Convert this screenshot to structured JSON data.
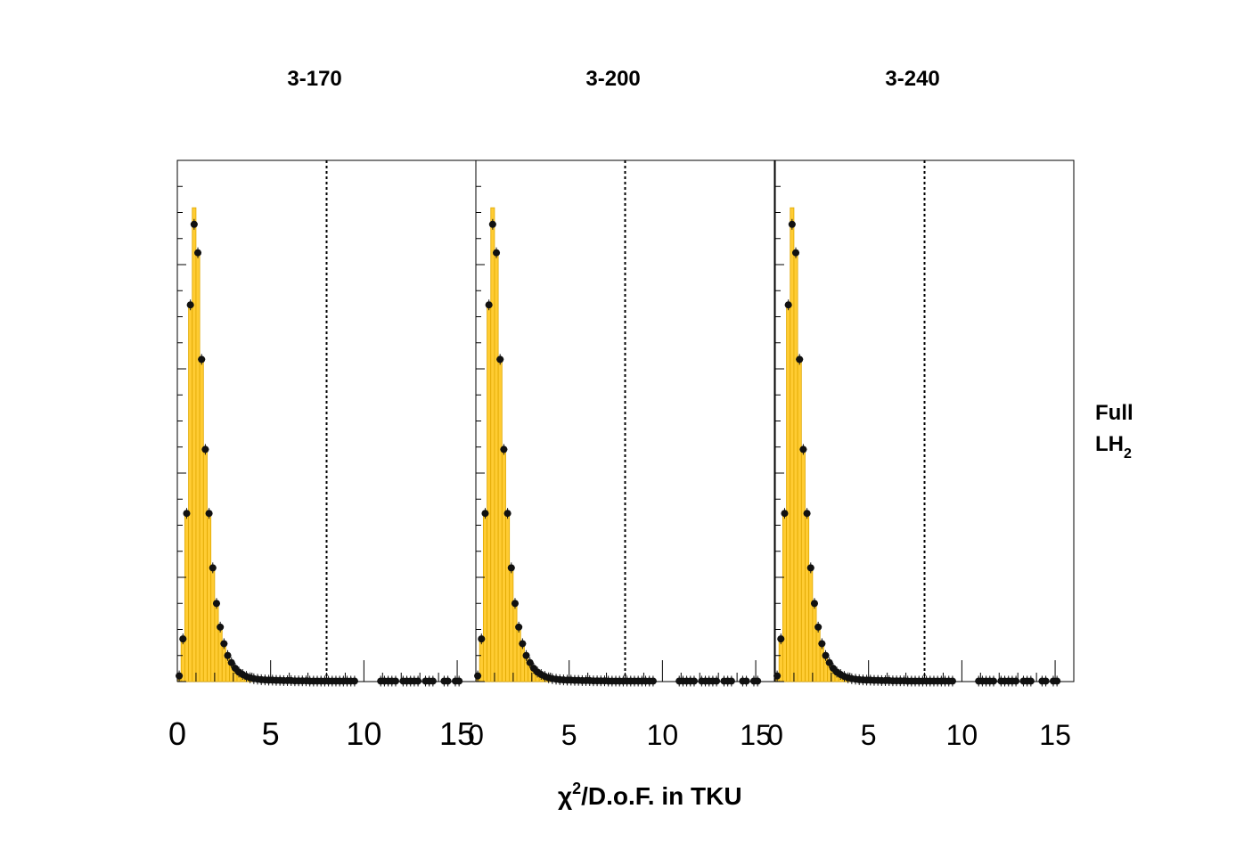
{
  "chart_data": {
    "type": "bar",
    "xlabel": "/D.o.F. in TKU",
    "xlabel_symbol": "χ",
    "xlabel_superscript": "2",
    "side_label": {
      "line1": "Full",
      "line2_main": "LH",
      "line2_sub": "2"
    },
    "x_range": [
      0,
      16
    ],
    "x_ticks": [
      "0",
      "5",
      "10",
      "15"
    ],
    "y_range": [
      0,
      1.1
    ],
    "cut_value": 8,
    "bin_width": 0.2,
    "panels": [
      {
        "title": "3-170"
      },
      {
        "title": "3-200"
      },
      {
        "title": "3-240"
      }
    ],
    "hist_values": [
      0.005,
      0.09,
      0.36,
      0.8,
      1.0,
      0.91,
      0.68,
      0.49,
      0.35,
      0.24,
      0.165,
      0.115,
      0.08,
      0.055,
      0.04,
      0.028,
      0.02,
      0.015,
      0.011,
      0.008,
      0.006,
      0.005,
      0.004,
      0.0035,
      0.003,
      0.003,
      0.0025,
      0.0025,
      0.002,
      0.002,
      0.002,
      0.0015,
      0.0015,
      0.0015,
      0.0015,
      0.001,
      0.001,
      0.001,
      0.001,
      0.001
    ],
    "data_points": [
      [
        0.1,
        0.012
      ],
      [
        0.3,
        0.09
      ],
      [
        0.5,
        0.355
      ],
      [
        0.7,
        0.795
      ],
      [
        0.9,
        0.965
      ],
      [
        1.1,
        0.905
      ],
      [
        1.3,
        0.68
      ],
      [
        1.5,
        0.49
      ],
      [
        1.7,
        0.355
      ],
      [
        1.9,
        0.24
      ],
      [
        2.1,
        0.165
      ],
      [
        2.3,
        0.115
      ],
      [
        2.5,
        0.08
      ],
      [
        2.7,
        0.055
      ],
      [
        2.9,
        0.04
      ],
      [
        3.1,
        0.028
      ],
      [
        3.3,
        0.02
      ],
      [
        3.5,
        0.015
      ],
      [
        3.7,
        0.011
      ],
      [
        3.9,
        0.008
      ],
      [
        4.1,
        0.006
      ],
      [
        4.3,
        0.005
      ],
      [
        4.5,
        0.004
      ],
      [
        4.7,
        0.0035
      ],
      [
        4.9,
        0.003
      ],
      [
        5.1,
        0.003
      ],
      [
        5.3,
        0.0025
      ],
      [
        5.5,
        0.0025
      ],
      [
        5.7,
        0.002
      ],
      [
        5.9,
        0.002
      ],
      [
        6.1,
        0.002
      ],
      [
        6.3,
        0.0015
      ],
      [
        6.5,
        0.0015
      ],
      [
        6.7,
        0.0015
      ],
      [
        6.9,
        0.0015
      ],
      [
        7.1,
        0.001
      ],
      [
        7.3,
        0.001
      ],
      [
        7.5,
        0.001
      ],
      [
        7.7,
        0.001
      ],
      [
        7.9,
        0.001
      ],
      [
        8.1,
        0.001
      ],
      [
        8.3,
        0.001
      ],
      [
        8.5,
        0.001
      ],
      [
        8.7,
        0.001
      ],
      [
        8.9,
        0.001
      ],
      [
        9.1,
        0.001
      ],
      [
        9.3,
        0.001
      ],
      [
        9.5,
        0.001
      ],
      [
        10.9,
        0.001
      ],
      [
        11.1,
        0.001
      ],
      [
        11.3,
        0.001
      ],
      [
        11.5,
        0.001
      ],
      [
        11.7,
        0.001
      ],
      [
        12.1,
        0.001
      ],
      [
        12.3,
        0.001
      ],
      [
        12.5,
        0.001
      ],
      [
        12.7,
        0.001
      ],
      [
        12.9,
        0.001
      ],
      [
        13.3,
        0.001
      ],
      [
        13.5,
        0.001
      ],
      [
        13.7,
        0.001
      ],
      [
        14.3,
        0.001
      ],
      [
        14.5,
        0.001
      ],
      [
        14.9,
        0.001
      ],
      [
        15.1,
        0.001
      ]
    ],
    "colors": {
      "fill": "#ffcc33",
      "outline": "#e0a800",
      "points": "#111111",
      "axes": "#000000"
    }
  }
}
